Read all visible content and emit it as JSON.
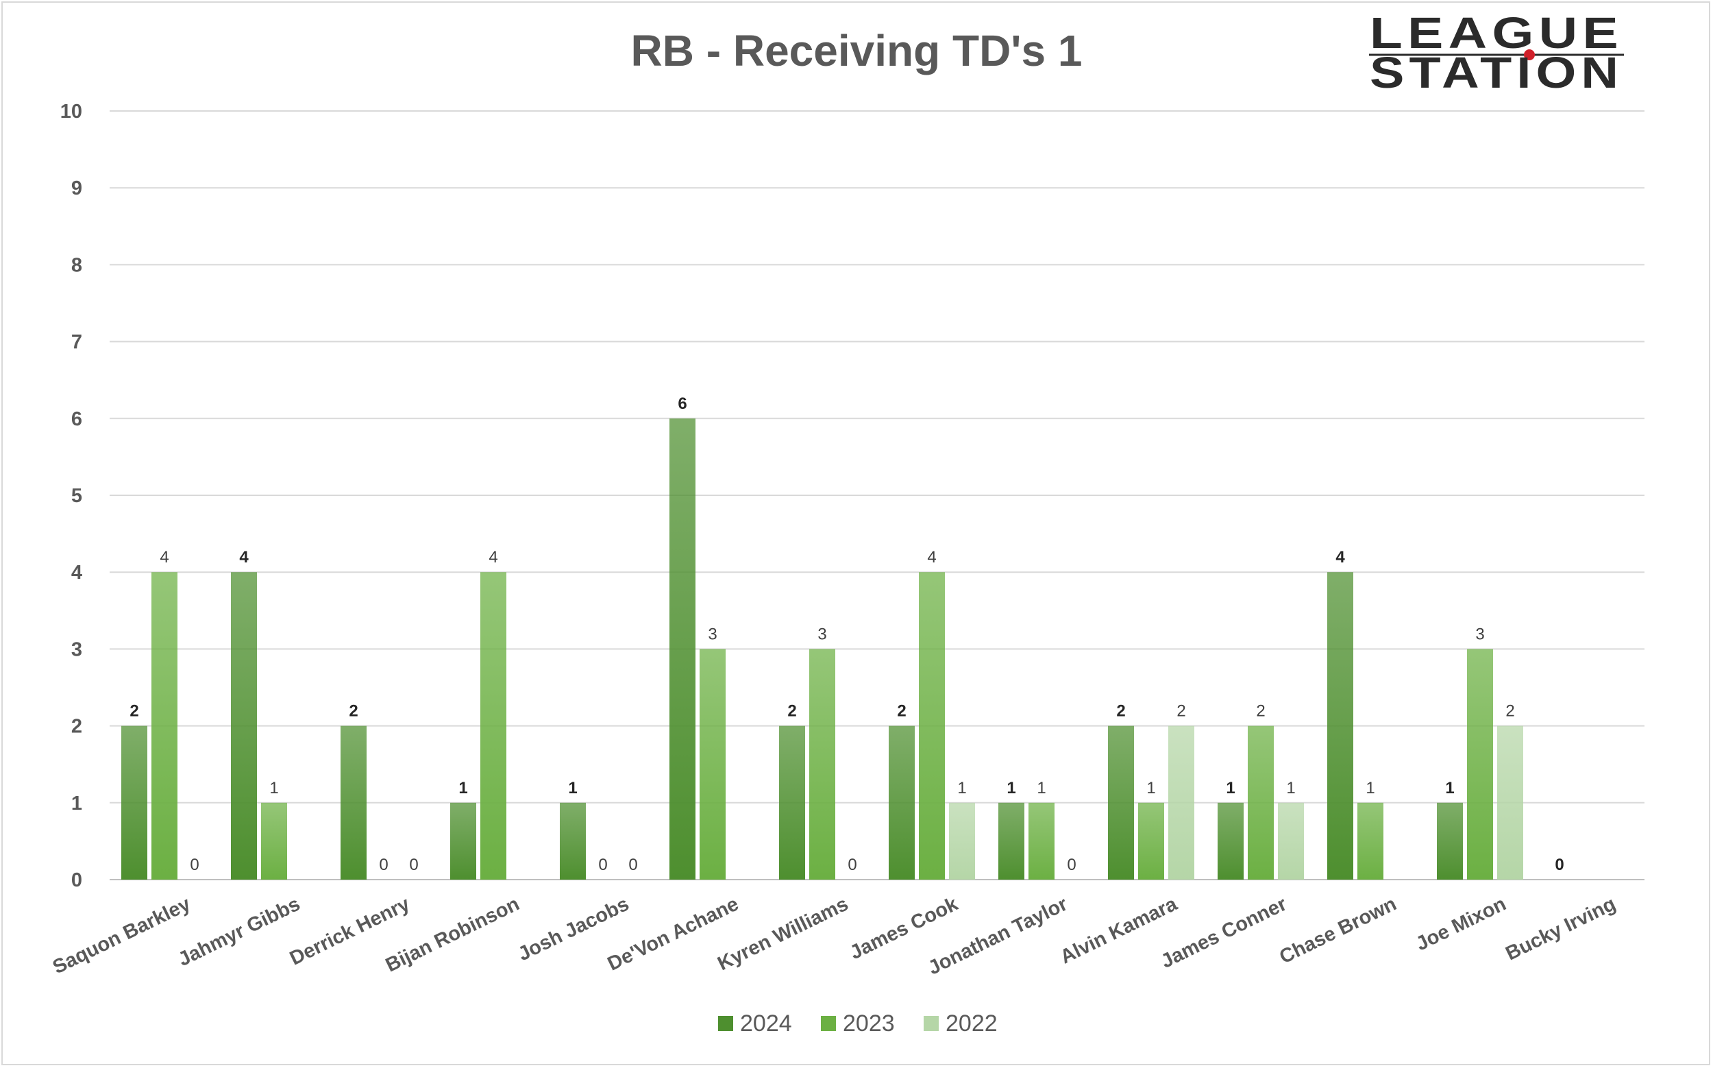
{
  "chart_data": {
    "type": "bar",
    "title": "RB - Receiving TD's 1",
    "categories": [
      "Saquon Barkley",
      "Jahmyr Gibbs",
      "Derrick Henry",
      "Bijan Robinson",
      "Josh Jacobs",
      "De'Von Achane",
      "Kyren Williams",
      "James Cook",
      "Jonathan Taylor",
      "Alvin Kamara",
      "James Conner",
      "Chase Brown",
      "Joe Mixon",
      "Bucky Irving"
    ],
    "series": [
      {
        "name": "2024",
        "values": [
          2,
          4,
          2,
          1,
          1,
          6,
          2,
          2,
          1,
          2,
          1,
          4,
          1,
          0
        ],
        "color": "#4e8f2f"
      },
      {
        "name": "2023",
        "values": [
          4,
          1,
          0,
          4,
          0,
          3,
          3,
          4,
          1,
          1,
          2,
          1,
          3,
          null
        ],
        "color": "#6cb043"
      },
      {
        "name": "2022",
        "values": [
          0,
          null,
          0,
          null,
          0,
          null,
          0,
          1,
          0,
          2,
          1,
          null,
          2,
          null
        ],
        "color": "#b5d6a7"
      }
    ],
    "yticks": [
      "0",
      "1",
      "2",
      "3",
      "4",
      "5",
      "6",
      "7",
      "8",
      "9",
      "10"
    ],
    "ylim": [
      0,
      10
    ],
    "xlabel": "",
    "ylabel": "",
    "legend_position": "bottom",
    "grid": true
  },
  "logo": {
    "line1": "LEAGUE",
    "line2": "STATION",
    "accent": "#d0202a"
  }
}
